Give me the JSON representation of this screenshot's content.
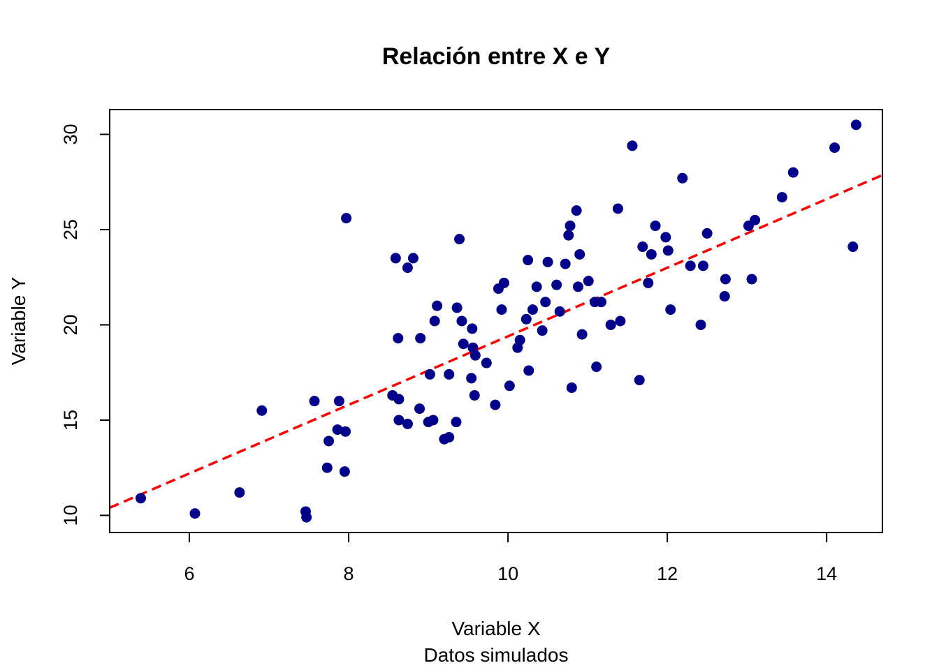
{
  "chart_data": {
    "type": "scatter",
    "title": "Relación entre X e Y",
    "xlabel": "Variable X",
    "subtitle": "Datos simulados",
    "ylabel": "Variable Y",
    "xlim": [
      5.0,
      14.7
    ],
    "ylim": [
      9.1,
      31.3
    ],
    "xticks": [
      6,
      8,
      10,
      12,
      14
    ],
    "yticks": [
      10,
      15,
      20,
      25,
      30
    ],
    "grid": false,
    "point_color": "#00008B",
    "trend_line": {
      "color": "#FF0000",
      "style": "dashed",
      "intercept": 1.4,
      "slope": 1.8
    },
    "points": [
      {
        "x": 5.39,
        "y": 10.9
      },
      {
        "x": 6.07,
        "y": 10.1
      },
      {
        "x": 6.63,
        "y": 11.2
      },
      {
        "x": 6.91,
        "y": 15.5
      },
      {
        "x": 7.46,
        "y": 10.2
      },
      {
        "x": 7.47,
        "y": 9.9
      },
      {
        "x": 7.57,
        "y": 16.0
      },
      {
        "x": 7.73,
        "y": 12.5
      },
      {
        "x": 7.75,
        "y": 13.9
      },
      {
        "x": 7.86,
        "y": 14.5
      },
      {
        "x": 7.88,
        "y": 16.0
      },
      {
        "x": 7.95,
        "y": 12.3
      },
      {
        "x": 7.96,
        "y": 14.4
      },
      {
        "x": 7.97,
        "y": 25.6
      },
      {
        "x": 8.55,
        "y": 16.3
      },
      {
        "x": 8.59,
        "y": 23.5
      },
      {
        "x": 8.62,
        "y": 19.3
      },
      {
        "x": 8.63,
        "y": 16.1
      },
      {
        "x": 8.63,
        "y": 15.0
      },
      {
        "x": 8.74,
        "y": 14.8
      },
      {
        "x": 8.74,
        "y": 23.0
      },
      {
        "x": 8.81,
        "y": 23.5
      },
      {
        "x": 8.89,
        "y": 15.6
      },
      {
        "x": 8.9,
        "y": 19.3
      },
      {
        "x": 9.0,
        "y": 14.9
      },
      {
        "x": 9.02,
        "y": 17.4
      },
      {
        "x": 9.06,
        "y": 15.0
      },
      {
        "x": 9.08,
        "y": 20.2
      },
      {
        "x": 9.11,
        "y": 21.0
      },
      {
        "x": 9.2,
        "y": 14.0
      },
      {
        "x": 9.26,
        "y": 14.1
      },
      {
        "x": 9.26,
        "y": 17.4
      },
      {
        "x": 9.35,
        "y": 14.9
      },
      {
        "x": 9.36,
        "y": 20.9
      },
      {
        "x": 9.39,
        "y": 24.5
      },
      {
        "x": 9.42,
        "y": 20.2
      },
      {
        "x": 9.44,
        "y": 19.0
      },
      {
        "x": 9.54,
        "y": 17.2
      },
      {
        "x": 9.55,
        "y": 19.8
      },
      {
        "x": 9.56,
        "y": 18.8
      },
      {
        "x": 9.58,
        "y": 16.3
      },
      {
        "x": 9.59,
        "y": 18.4
      },
      {
        "x": 9.73,
        "y": 18.0
      },
      {
        "x": 9.84,
        "y": 15.8
      },
      {
        "x": 9.88,
        "y": 21.9
      },
      {
        "x": 9.92,
        "y": 20.8
      },
      {
        "x": 9.95,
        "y": 22.2
      },
      {
        "x": 10.02,
        "y": 16.8
      },
      {
        "x": 10.12,
        "y": 18.8
      },
      {
        "x": 10.15,
        "y": 19.2
      },
      {
        "x": 10.23,
        "y": 20.3
      },
      {
        "x": 10.25,
        "y": 23.4
      },
      {
        "x": 10.26,
        "y": 17.6
      },
      {
        "x": 10.31,
        "y": 20.8
      },
      {
        "x": 10.36,
        "y": 22.0
      },
      {
        "x": 10.43,
        "y": 19.7
      },
      {
        "x": 10.47,
        "y": 21.2
      },
      {
        "x": 10.5,
        "y": 23.3
      },
      {
        "x": 10.61,
        "y": 22.1
      },
      {
        "x": 10.65,
        "y": 20.7
      },
      {
        "x": 10.72,
        "y": 23.2
      },
      {
        "x": 10.76,
        "y": 24.7
      },
      {
        "x": 10.78,
        "y": 25.2
      },
      {
        "x": 10.8,
        "y": 16.7
      },
      {
        "x": 10.86,
        "y": 26.0
      },
      {
        "x": 10.88,
        "y": 22.0
      },
      {
        "x": 10.9,
        "y": 23.7
      },
      {
        "x": 10.93,
        "y": 19.5
      },
      {
        "x": 11.01,
        "y": 22.3
      },
      {
        "x": 11.09,
        "y": 21.2
      },
      {
        "x": 11.11,
        "y": 17.8
      },
      {
        "x": 11.17,
        "y": 21.2
      },
      {
        "x": 11.29,
        "y": 20.0
      },
      {
        "x": 11.38,
        "y": 26.1
      },
      {
        "x": 11.41,
        "y": 20.2
      },
      {
        "x": 11.56,
        "y": 29.4
      },
      {
        "x": 11.65,
        "y": 17.1
      },
      {
        "x": 11.69,
        "y": 24.1
      },
      {
        "x": 11.76,
        "y": 22.2
      },
      {
        "x": 11.8,
        "y": 23.7
      },
      {
        "x": 11.85,
        "y": 25.2
      },
      {
        "x": 11.98,
        "y": 24.6
      },
      {
        "x": 12.01,
        "y": 23.9
      },
      {
        "x": 12.04,
        "y": 20.8
      },
      {
        "x": 12.19,
        "y": 27.7
      },
      {
        "x": 12.29,
        "y": 23.1
      },
      {
        "x": 12.42,
        "y": 20.0
      },
      {
        "x": 12.45,
        "y": 23.1
      },
      {
        "x": 12.5,
        "y": 24.8
      },
      {
        "x": 12.72,
        "y": 21.5
      },
      {
        "x": 12.73,
        "y": 22.4
      },
      {
        "x": 13.02,
        "y": 25.2
      },
      {
        "x": 13.06,
        "y": 22.4
      },
      {
        "x": 13.1,
        "y": 25.5
      },
      {
        "x": 13.44,
        "y": 26.7
      },
      {
        "x": 13.58,
        "y": 28.0
      },
      {
        "x": 14.1,
        "y": 29.3
      },
      {
        "x": 14.33,
        "y": 24.1
      },
      {
        "x": 14.37,
        "y": 30.5
      }
    ]
  }
}
